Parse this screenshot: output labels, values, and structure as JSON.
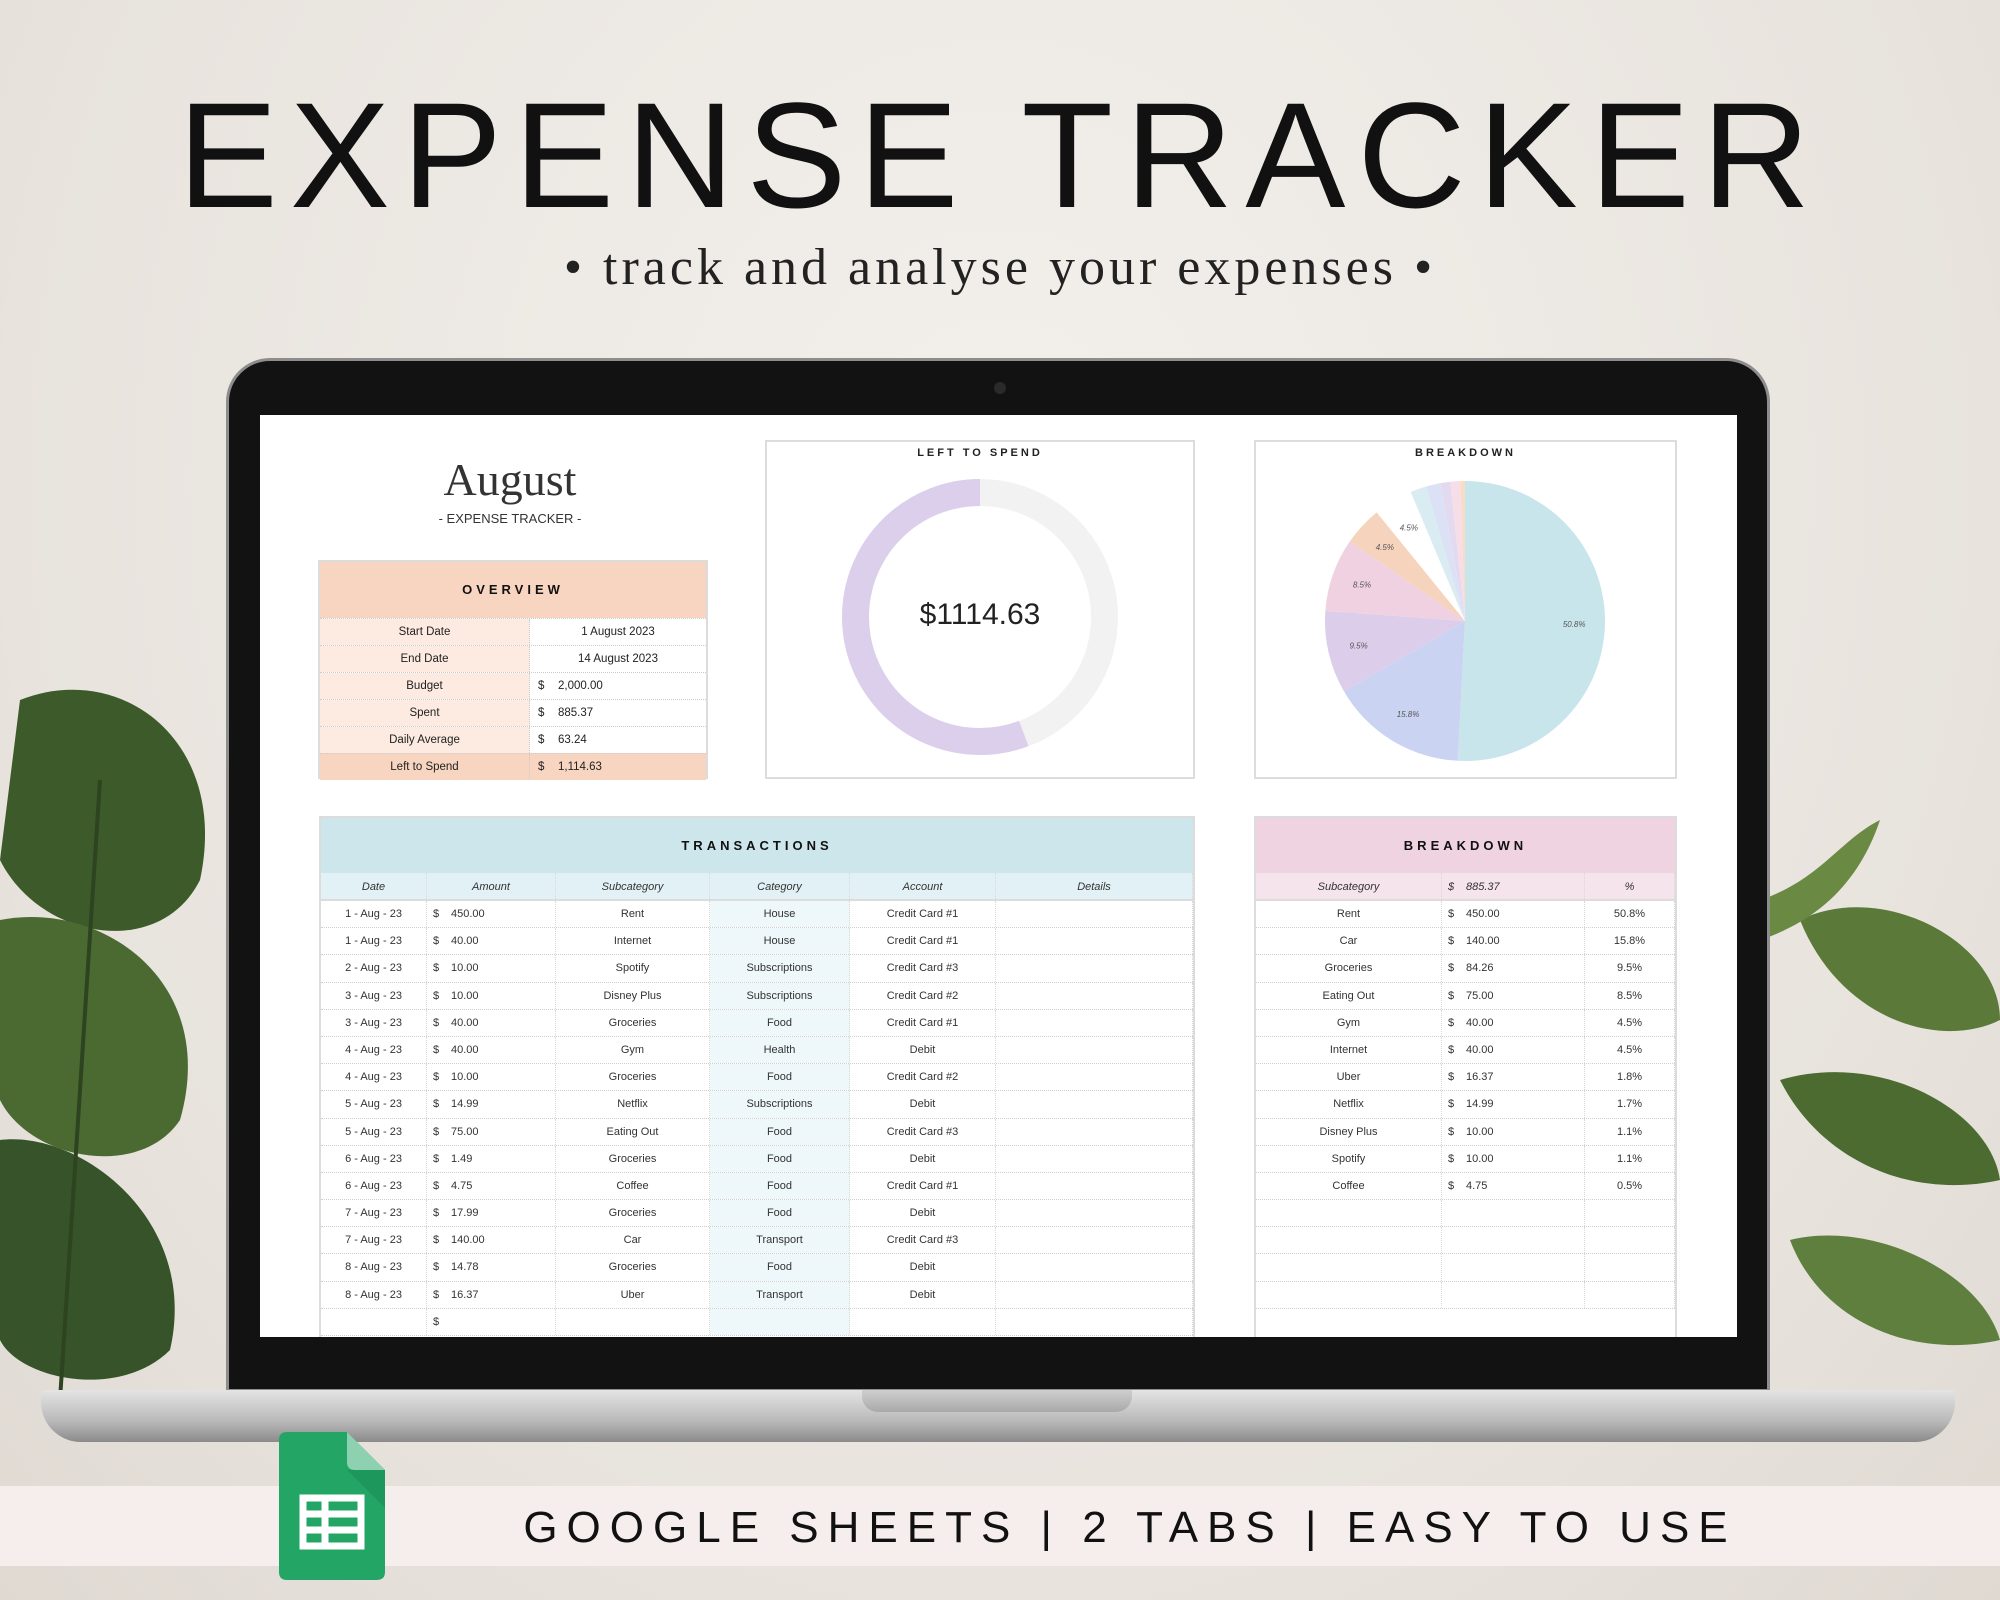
{
  "headline": "EXPENSE TRACKER",
  "tagline": "• track and analyse your expenses •",
  "banner": "GOOGLE SHEETS | 2 TABS | EASY TO USE",
  "icons": {
    "sheets": "google-sheets-icon"
  },
  "sheet": {
    "month": "August",
    "subtitle": "- EXPENSE TRACKER -",
    "overview": {
      "title": "OVERVIEW",
      "rows": [
        {
          "label": "Start Date",
          "value": "1 August 2023"
        },
        {
          "label": "End Date",
          "value": "14 August 2023"
        },
        {
          "label": "Budget",
          "currency": "$",
          "value": "2,000.00"
        },
        {
          "label": "Spent",
          "currency": "$",
          "value": "885.37"
        },
        {
          "label": "Daily Average",
          "currency": "$",
          "value": "63.24"
        },
        {
          "label": "Left to Spend",
          "currency": "$",
          "value": "1,114.63"
        }
      ]
    },
    "left_to_spend": {
      "title": "LEFT TO SPEND",
      "value": "$1114.63",
      "fraction_left": 0.557,
      "colors": {
        "left": "#dccfec",
        "spent": "#f2f2f2"
      }
    },
    "transactions": {
      "title": "TRANSACTIONS",
      "columns": [
        "Date",
        "Amount",
        "Subcategory",
        "Category",
        "Account",
        "Details"
      ],
      "rows": [
        [
          "1 - Aug - 23",
          "450.00",
          "Rent",
          "House",
          "Credit Card #1",
          ""
        ],
        [
          "1 - Aug - 23",
          "40.00",
          "Internet",
          "House",
          "Credit Card #1",
          ""
        ],
        [
          "2 - Aug - 23",
          "10.00",
          "Spotify",
          "Subscriptions",
          "Credit Card #3",
          ""
        ],
        [
          "3 - Aug - 23",
          "10.00",
          "Disney Plus",
          "Subscriptions",
          "Credit Card #2",
          ""
        ],
        [
          "3 - Aug - 23",
          "40.00",
          "Groceries",
          "Food",
          "Credit Card #1",
          ""
        ],
        [
          "4 - Aug - 23",
          "40.00",
          "Gym",
          "Health",
          "Debit",
          ""
        ],
        [
          "4 - Aug - 23",
          "10.00",
          "Groceries",
          "Food",
          "Credit Card #2",
          ""
        ],
        [
          "5 - Aug - 23",
          "14.99",
          "Netflix",
          "Subscriptions",
          "Debit",
          ""
        ],
        [
          "5 - Aug - 23",
          "75.00",
          "Eating Out",
          "Food",
          "Credit Card #3",
          ""
        ],
        [
          "6 - Aug - 23",
          "1.49",
          "Groceries",
          "Food",
          "Debit",
          ""
        ],
        [
          "6 - Aug - 23",
          "4.75",
          "Coffee",
          "Food",
          "Credit Card #1",
          ""
        ],
        [
          "7 - Aug - 23",
          "17.99",
          "Groceries",
          "Food",
          "Debit",
          ""
        ],
        [
          "7 - Aug - 23",
          "140.00",
          "Car",
          "Transport",
          "Credit Card #3",
          ""
        ],
        [
          "8 - Aug - 23",
          "14.78",
          "Groceries",
          "Food",
          "Debit",
          ""
        ],
        [
          "8 - Aug - 23",
          "16.37",
          "Uber",
          "Transport",
          "Debit",
          ""
        ],
        [
          "",
          "",
          "",
          "",
          "",
          ""
        ]
      ],
      "currency": "$"
    },
    "breakdown_table": {
      "title": "BREAKDOWN",
      "columns": [
        "Subcategory",
        "885.37",
        "%"
      ],
      "currency": "$",
      "rows": [
        [
          "Rent",
          "450.00",
          "50.8%"
        ],
        [
          "Car",
          "140.00",
          "15.8%"
        ],
        [
          "Groceries",
          "84.26",
          "9.5%"
        ],
        [
          "Eating Out",
          "75.00",
          "8.5%"
        ],
        [
          "Gym",
          "40.00",
          "4.5%"
        ],
        [
          "Internet",
          "40.00",
          "4.5%"
        ],
        [
          "Uber",
          "16.37",
          "1.8%"
        ],
        [
          "Netflix",
          "14.99",
          "1.7%"
        ],
        [
          "Disney Plus",
          "10.00",
          "1.1%"
        ],
        [
          "Spotify",
          "10.00",
          "1.1%"
        ],
        [
          "Coffee",
          "4.75",
          "0.5%"
        ],
        [
          "",
          "",
          ""
        ],
        [
          "",
          "",
          ""
        ],
        [
          "",
          "",
          ""
        ],
        [
          "",
          "",
          ""
        ]
      ]
    }
  },
  "chart_data": {
    "type": "pie",
    "title": "BREAKDOWN",
    "categories": [
      "Rent",
      "Car",
      "Groceries",
      "Eating Out",
      "Gym",
      "Internet",
      "Uber",
      "Netflix",
      "Disney Plus",
      "Spotify",
      "Coffee"
    ],
    "values": [
      450.0,
      140.0,
      84.26,
      75.0,
      40.0,
      40.0,
      16.37,
      14.99,
      10.0,
      10.0,
      4.75
    ],
    "labels": [
      "50.8%",
      "15.8%",
      "9.5%",
      "8.5%",
      "4.5%",
      "4.5%",
      "",
      "",
      "",
      "",
      ""
    ],
    "colors": [
      "#c9e5ec",
      "#cbd3f3",
      "#dccdea",
      "#f0d1e1",
      "#f6d3bc",
      "#ffffff",
      "#d8ecf2",
      "#dde1f6",
      "#e4daef",
      "#f6dde7",
      "#f8dcc6"
    ],
    "legend": "none"
  }
}
